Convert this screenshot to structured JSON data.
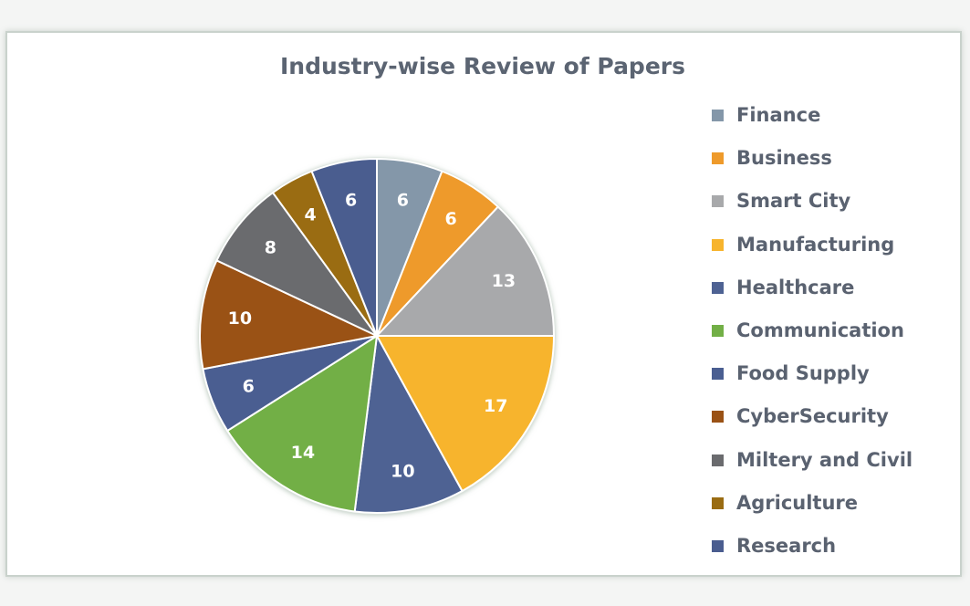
{
  "chart_data": {
    "type": "pie",
    "title": "Industry-wise Review of Papers",
    "legend_position": "right",
    "slices": [
      {
        "label": "Finance",
        "value": 6,
        "color": "#8497a9"
      },
      {
        "label": "Business",
        "value": 6,
        "color": "#ee9a2b"
      },
      {
        "label": "Smart City",
        "value": 13,
        "color": "#a8a9ab"
      },
      {
        "label": "Manufacturing",
        "value": 17,
        "color": "#f7b42d"
      },
      {
        "label": "Healthcare",
        "value": 10,
        "color": "#4e6293"
      },
      {
        "label": "Communication",
        "value": 14,
        "color": "#72af46"
      },
      {
        "label": "Food Supply",
        "value": 6,
        "color": "#4a5e91"
      },
      {
        "label": "CyberSecurity",
        "value": 10,
        "color": "#9a5215"
      },
      {
        "label": "Miltery and Civil",
        "value": 8,
        "color": "#6a6b6e"
      },
      {
        "label": "Agriculture",
        "value": 4,
        "color": "#9a6c12"
      },
      {
        "label": "Research",
        "value": 6,
        "color": "#4a5d8f"
      }
    ]
  }
}
